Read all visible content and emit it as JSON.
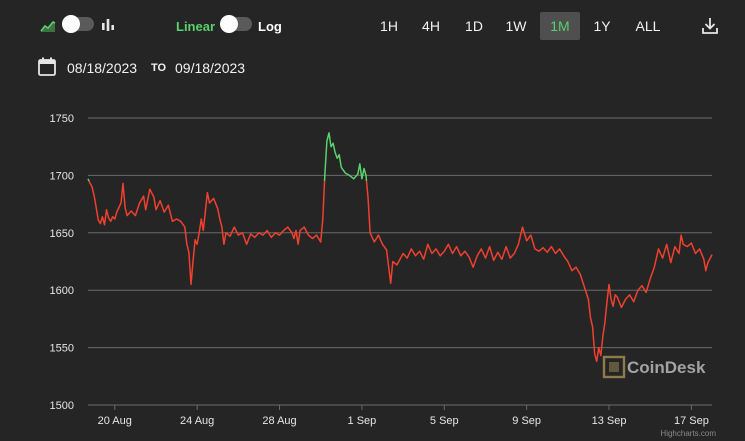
{
  "toolbar": {
    "chart_type_icons": [
      "area-chart-icon",
      "candlestick-chart-icon"
    ],
    "scale_linear": "Linear",
    "scale_log": "Log",
    "ranges": [
      "1H",
      "4H",
      "1D",
      "1W",
      "1M",
      "1Y",
      "ALL"
    ],
    "active_range": "1M",
    "download_icon": "download-icon"
  },
  "date_range": {
    "icon": "calendar-icon",
    "from": "08/18/2023",
    "separator": "TO",
    "to": "09/18/2023"
  },
  "watermark": "CoinDesk",
  "credit": "Highcharts.com",
  "colors": {
    "background": "#252525",
    "up": "#5ad16b",
    "down": "#f0402e",
    "grid": "#6a6a6a",
    "accent_green": "#5ad16b"
  },
  "chart_data": {
    "type": "line",
    "y_ticks": [
      1500,
      1550,
      1600,
      1650,
      1700,
      1750
    ],
    "ylim": [
      1500,
      1750
    ],
    "x_ticks": [
      {
        "label": "20 Aug",
        "day": 20
      },
      {
        "label": "24 Aug",
        "day": 24
      },
      {
        "label": "28 Aug",
        "day": 28
      },
      {
        "label": "1 Sep",
        "day": 32
      },
      {
        "label": "5 Sep",
        "day": 36
      },
      {
        "label": "9 Sep",
        "day": 40
      },
      {
        "label": "13 Sep",
        "day": 44
      },
      {
        "label": "17 Sep",
        "day": 48
      }
    ],
    "xlim": [
      18.7,
      49.0
    ],
    "reference_price": 1695,
    "grid": true,
    "series": [
      {
        "points": [
          [
            18.7,
            1697
          ],
          [
            18.8,
            1693
          ],
          [
            18.9,
            1690
          ],
          [
            19.0,
            1682
          ],
          [
            19.1,
            1672
          ],
          [
            19.2,
            1661
          ],
          [
            19.3,
            1658
          ],
          [
            19.4,
            1664
          ],
          [
            19.5,
            1657
          ],
          [
            19.6,
            1670
          ],
          [
            19.7,
            1663
          ],
          [
            19.8,
            1660
          ],
          [
            19.9,
            1664
          ],
          [
            20.0,
            1662
          ],
          [
            20.1,
            1668
          ],
          [
            20.3,
            1676
          ],
          [
            20.4,
            1693
          ],
          [
            20.5,
            1672
          ],
          [
            20.6,
            1665
          ],
          [
            20.8,
            1669
          ],
          [
            21.0,
            1665
          ],
          [
            21.2,
            1676
          ],
          [
            21.4,
            1682
          ],
          [
            21.5,
            1670
          ],
          [
            21.7,
            1688
          ],
          [
            21.9,
            1681
          ],
          [
            22.0,
            1670
          ],
          [
            22.2,
            1678
          ],
          [
            22.4,
            1668
          ],
          [
            22.6,
            1674
          ],
          [
            22.8,
            1660
          ],
          [
            23.0,
            1662
          ],
          [
            23.2,
            1660
          ],
          [
            23.4,
            1655
          ],
          [
            23.5,
            1640
          ],
          [
            23.6,
            1633
          ],
          [
            23.7,
            1605
          ],
          [
            23.8,
            1625
          ],
          [
            23.9,
            1644
          ],
          [
            24.0,
            1640
          ],
          [
            24.1,
            1650
          ],
          [
            24.2,
            1662
          ],
          [
            24.3,
            1652
          ],
          [
            24.5,
            1685
          ],
          [
            24.6,
            1676
          ],
          [
            24.8,
            1680
          ],
          [
            25.0,
            1671
          ],
          [
            25.1,
            1662
          ],
          [
            25.2,
            1655
          ],
          [
            25.3,
            1640
          ],
          [
            25.4,
            1650
          ],
          [
            25.6,
            1647
          ],
          [
            25.8,
            1655
          ],
          [
            26.0,
            1648
          ],
          [
            26.2,
            1650
          ],
          [
            26.4,
            1640
          ],
          [
            26.6,
            1649
          ],
          [
            26.8,
            1646
          ],
          [
            27.0,
            1650
          ],
          [
            27.2,
            1648
          ],
          [
            27.4,
            1652
          ],
          [
            27.6,
            1646
          ],
          [
            27.8,
            1650
          ],
          [
            28.0,
            1648
          ],
          [
            28.2,
            1652
          ],
          [
            28.4,
            1655
          ],
          [
            28.6,
            1650
          ],
          [
            28.7,
            1645
          ],
          [
            28.8,
            1652
          ],
          [
            28.9,
            1640
          ],
          [
            29.0,
            1652
          ],
          [
            29.2,
            1655
          ],
          [
            29.4,
            1648
          ],
          [
            29.6,
            1645
          ],
          [
            29.8,
            1648
          ],
          [
            30.0,
            1642
          ],
          [
            30.1,
            1662
          ],
          [
            30.2,
            1700
          ],
          [
            30.3,
            1730
          ],
          [
            30.4,
            1737
          ],
          [
            30.5,
            1725
          ],
          [
            30.6,
            1728
          ],
          [
            30.7,
            1720
          ],
          [
            30.8,
            1715
          ],
          [
            30.9,
            1718
          ],
          [
            31.0,
            1707
          ],
          [
            31.2,
            1702
          ],
          [
            31.4,
            1700
          ],
          [
            31.6,
            1697
          ],
          [
            31.8,
            1701
          ],
          [
            31.9,
            1710
          ],
          [
            32.0,
            1697
          ],
          [
            32.1,
            1706
          ],
          [
            32.2,
            1700
          ],
          [
            32.3,
            1680
          ],
          [
            32.4,
            1650
          ],
          [
            32.6,
            1642
          ],
          [
            32.8,
            1648
          ],
          [
            33.0,
            1640
          ],
          [
            33.2,
            1635
          ],
          [
            33.3,
            1620
          ],
          [
            33.4,
            1606
          ],
          [
            33.5,
            1625
          ],
          [
            33.7,
            1622
          ],
          [
            34.0,
            1632
          ],
          [
            34.2,
            1628
          ],
          [
            34.4,
            1636
          ],
          [
            34.6,
            1630
          ],
          [
            34.8,
            1634
          ],
          [
            35.0,
            1627
          ],
          [
            35.2,
            1640
          ],
          [
            35.4,
            1632
          ],
          [
            35.6,
            1636
          ],
          [
            35.8,
            1630
          ],
          [
            36.0,
            1634
          ],
          [
            36.2,
            1640
          ],
          [
            36.4,
            1632
          ],
          [
            36.6,
            1638
          ],
          [
            36.8,
            1630
          ],
          [
            37.0,
            1634
          ],
          [
            37.2,
            1629
          ],
          [
            37.4,
            1620
          ],
          [
            37.6,
            1630
          ],
          [
            37.8,
            1636
          ],
          [
            38.0,
            1628
          ],
          [
            38.2,
            1638
          ],
          [
            38.4,
            1626
          ],
          [
            38.6,
            1633
          ],
          [
            38.8,
            1627
          ],
          [
            39.0,
            1638
          ],
          [
            39.2,
            1628
          ],
          [
            39.4,
            1632
          ],
          [
            39.6,
            1640
          ],
          [
            39.8,
            1655
          ],
          [
            40.0,
            1643
          ],
          [
            40.2,
            1648
          ],
          [
            40.4,
            1636
          ],
          [
            40.6,
            1634
          ],
          [
            40.8,
            1637
          ],
          [
            41.0,
            1633
          ],
          [
            41.2,
            1638
          ],
          [
            41.4,
            1632
          ],
          [
            41.6,
            1636
          ],
          [
            41.8,
            1630
          ],
          [
            42.0,
            1625
          ],
          [
            42.2,
            1617
          ],
          [
            42.4,
            1620
          ],
          [
            42.6,
            1614
          ],
          [
            42.8,
            1603
          ],
          [
            43.0,
            1592
          ],
          [
            43.1,
            1576
          ],
          [
            43.2,
            1568
          ],
          [
            43.3,
            1545
          ],
          [
            43.4,
            1538
          ],
          [
            43.5,
            1550
          ],
          [
            43.6,
            1543
          ],
          [
            43.7,
            1560
          ],
          [
            43.8,
            1572
          ],
          [
            43.9,
            1590
          ],
          [
            44.0,
            1605
          ],
          [
            44.1,
            1592
          ],
          [
            44.2,
            1586
          ],
          [
            44.3,
            1596
          ],
          [
            44.4,
            1594
          ],
          [
            44.6,
            1585
          ],
          [
            44.8,
            1592
          ],
          [
            45.0,
            1596
          ],
          [
            45.2,
            1590
          ],
          [
            45.4,
            1600
          ],
          [
            45.6,
            1604
          ],
          [
            45.8,
            1598
          ],
          [
            46.0,
            1610
          ],
          [
            46.2,
            1620
          ],
          [
            46.4,
            1636
          ],
          [
            46.6,
            1628
          ],
          [
            46.8,
            1640
          ],
          [
            47.0,
            1624
          ],
          [
            47.2,
            1638
          ],
          [
            47.4,
            1632
          ],
          [
            47.5,
            1648
          ],
          [
            47.6,
            1640
          ],
          [
            47.8,
            1638
          ],
          [
            48.0,
            1641
          ],
          [
            48.2,
            1632
          ],
          [
            48.4,
            1636
          ],
          [
            48.6,
            1627
          ],
          [
            48.7,
            1617
          ],
          [
            48.8,
            1624
          ],
          [
            49.0,
            1631
          ]
        ]
      }
    ]
  }
}
